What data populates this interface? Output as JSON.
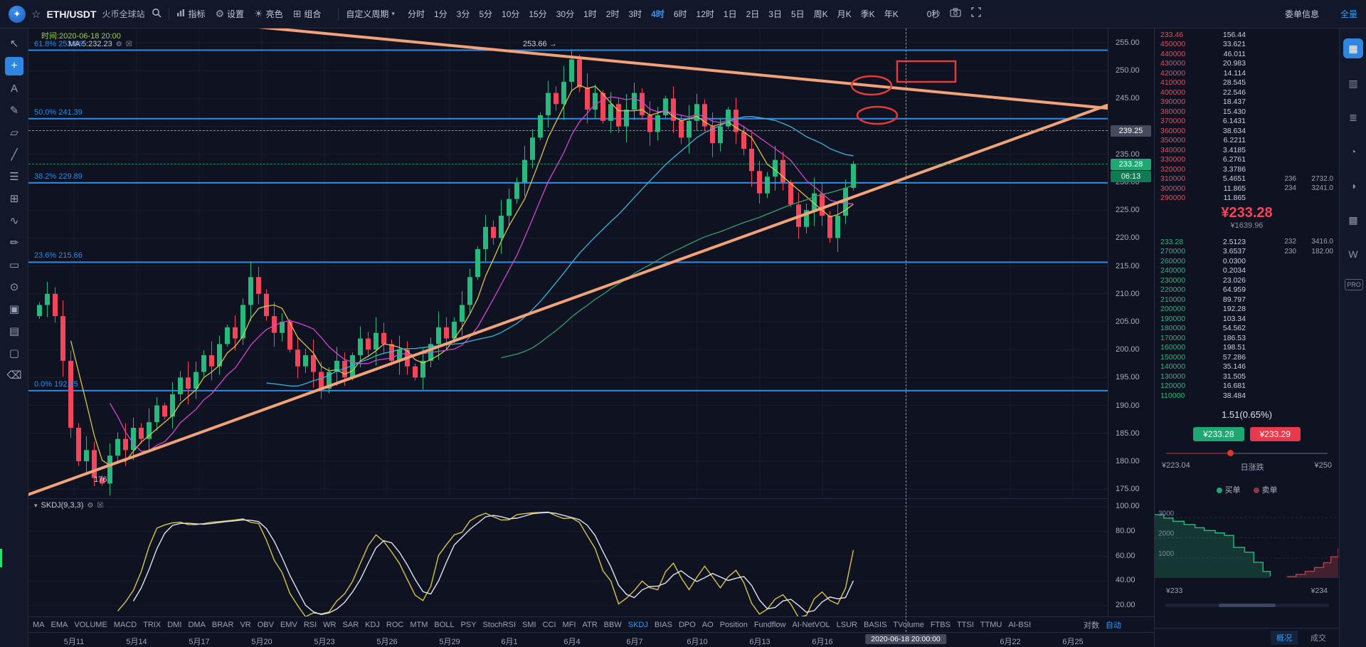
{
  "colors": {
    "accent": "#2e9bff",
    "up": "#28b97c",
    "down": "#f4455a",
    "fib": "#2e8ae6",
    "trendline": "#f2a278",
    "annotation": "#e23b3b"
  },
  "topbar": {
    "symbol": "ETH/USDT",
    "exchange": "火币全球站",
    "menu": {
      "indicators": "指标",
      "settings": "设置",
      "light": "亮色",
      "portfolio": "组合",
      "custom_period": "自定义周期"
    },
    "timeframes": [
      "分时",
      "1分",
      "3分",
      "5分",
      "10分",
      "15分",
      "30分",
      "1时",
      "2时",
      "3时",
      "4时",
      "6时",
      "12时",
      "1日",
      "2日",
      "3日",
      "5日",
      "周K",
      "月K",
      "季K",
      "年K"
    ],
    "active_timeframe": "4时",
    "countdown": "0秒",
    "order_info_label": "委单信息",
    "full_label": "全量"
  },
  "left_toolbar": {
    "tools": [
      {
        "name": "cursor-tool",
        "glyph": "↖"
      },
      {
        "name": "crosshair-tool",
        "glyph": "+",
        "active": true
      },
      {
        "name": "text-tool",
        "glyph": "A"
      },
      {
        "name": "brush-tool",
        "glyph": "✎"
      },
      {
        "name": "channel-tool",
        "glyph": "▱"
      },
      {
        "name": "trendline-tool",
        "glyph": "╱"
      },
      {
        "name": "fib-retracement-tool",
        "glyph": "☰"
      },
      {
        "name": "gann-grid-tool",
        "glyph": "⊞"
      },
      {
        "name": "wave-tool",
        "glyph": "∿"
      },
      {
        "name": "pencil-tool",
        "glyph": "✏"
      },
      {
        "name": "rectangle-tool",
        "glyph": "▭"
      },
      {
        "name": "circle-tool",
        "glyph": "⊙"
      },
      {
        "name": "anchor-tool",
        "glyph": "▣"
      },
      {
        "name": "template-tool",
        "glyph": "▤"
      },
      {
        "name": "screenshot-tool",
        "glyph": "▢"
      },
      {
        "name": "remove-drawings-tool",
        "glyph": "⌫"
      }
    ]
  },
  "right_strip": {
    "tools": [
      {
        "name": "kline-view-icon",
        "glyph": "▦",
        "active": true
      },
      {
        "name": "indicator-panel-icon",
        "glyph": "▥"
      },
      {
        "name": "orderbook-view-icon",
        "glyph": "≣"
      },
      {
        "name": "time-icon",
        "glyph": "◔"
      },
      {
        "name": "contrast-icon",
        "glyph": "◑"
      },
      {
        "name": "layout-grid-icon",
        "glyph": "▩"
      },
      {
        "name": "w-widget-icon",
        "glyph": "W"
      }
    ],
    "pro_label": "PRO"
  },
  "chart": {
    "time_label": "时间:2020-06-18 20:00",
    "ma_label": "MA 5:232.23",
    "high_marker": "253.66 →",
    "low_marker": "176",
    "fib_levels": [
      {
        "label": "61.8% 253.66",
        "price": 253.66
      },
      {
        "label": "50.0% 241.39",
        "price": 241.39
      },
      {
        "label": "38.2% 229.89",
        "price": 229.89
      },
      {
        "label": "23.6% 215.66",
        "price": 215.66
      },
      {
        "label": "0.0% 192.65",
        "price": 192.65
      }
    ],
    "y_ticks": [
      "255.00",
      "250.00",
      "245.00",
      "235.00",
      "230.00",
      "225.00",
      "220.00",
      "215.00",
      "210.00",
      "205.00",
      "200.00",
      "195.00",
      "190.00",
      "185.00",
      "180.00",
      "175.00"
    ],
    "x_ticks": [
      "5月11",
      "5月14",
      "5月17",
      "5月20",
      "5月23",
      "5月26",
      "5月29",
      "6月1",
      "6月4",
      "6月7",
      "6月10",
      "6月13",
      "6月16",
      "6月22",
      "6月25"
    ],
    "crosshair": {
      "price": "239.25",
      "time": "2020-06-18 20:00:00"
    },
    "last_price": {
      "value": "233.28",
      "countdown": "06:13"
    }
  },
  "chart_data": {
    "type": "candlestick",
    "symbol": "ETH/USDT",
    "interval": "4时",
    "price_axis_range": [
      175,
      255
    ],
    "fib_prices": [
      253.66,
      241.39,
      229.89,
      215.66,
      192.65
    ],
    "ma_periods": [
      5,
      10,
      30,
      60
    ],
    "closes": [
      208,
      210,
      206,
      198,
      186,
      180,
      182,
      177,
      176,
      181,
      184,
      182,
      186,
      184,
      187,
      190,
      188,
      192,
      195,
      193,
      196,
      199,
      197,
      201,
      204,
      202,
      208,
      213,
      210,
      206,
      203,
      205,
      200,
      197,
      199,
      196,
      193,
      196,
      198,
      195,
      199,
      202,
      200,
      203,
      201,
      198,
      200,
      197,
      195,
      198,
      201,
      204,
      202,
      205,
      208,
      213,
      218,
      222,
      220,
      224,
      227,
      230,
      234,
      238,
      242,
      246,
      244,
      248,
      252,
      247,
      243,
      246,
      241,
      244,
      240,
      243,
      246,
      242,
      239,
      242,
      245,
      241,
      238,
      241,
      244,
      240,
      237,
      240,
      243,
      239,
      236,
      232,
      228,
      231,
      234,
      230,
      226,
      222,
      225,
      228,
      224,
      220,
      224,
      229,
      233.28
    ],
    "high": 253.66,
    "low": 176,
    "skdj": {
      "name": "SKDJ(9,3,3)",
      "range": [
        20,
        100
      ],
      "ticks": [
        "100.00",
        "80.00",
        "60.00",
        "40.00",
        "20.00"
      ]
    },
    "depth": {
      "y_ticks": [
        "3000",
        "2000",
        "1000"
      ],
      "x_labels": [
        "¥233",
        "¥234"
      ],
      "max": 3400,
      "bids": [
        [
          0,
          3150
        ],
        [
          0.05,
          2980
        ],
        [
          0.1,
          2820
        ],
        [
          0.16,
          2660
        ],
        [
          0.22,
          2500
        ],
        [
          0.27,
          2360
        ],
        [
          0.33,
          2240
        ],
        [
          0.38,
          2120
        ],
        [
          0.43,
          1520
        ],
        [
          0.49,
          1280
        ],
        [
          0.54,
          780
        ],
        [
          0.59,
          320
        ],
        [
          0.63,
          90
        ]
      ],
      "asks": [
        [
          0.72,
          70
        ],
        [
          0.77,
          180
        ],
        [
          0.82,
          330
        ],
        [
          0.87,
          520
        ],
        [
          0.92,
          760
        ],
        [
          0.96,
          1050
        ],
        [
          1,
          1480
        ]
      ]
    }
  },
  "indicator_tabs": {
    "items": [
      "MA",
      "EMA",
      "VOLUME",
      "MACD",
      "TRIX",
      "DMI",
      "DMA",
      "BRAR",
      "VR",
      "OBV",
      "EMV",
      "RSI",
      "WR",
      "SAR",
      "KDJ",
      "ROC",
      "MTM",
      "BOLL",
      "PSY",
      "StochRSI",
      "SMI",
      "CCI",
      "MFI",
      "ATR",
      "BBW",
      "SKDJ",
      "BIAS",
      "DPO",
      "AO",
      "Position",
      "Fundflow",
      "AI-NetVOL",
      "LSUR",
      "BASIS",
      "TVolume",
      "FTBS",
      "TTSI",
      "TTMU",
      "AI-BSI"
    ],
    "active": "SKDJ",
    "log_label": "对数",
    "auto_label": "自动"
  },
  "orderbook": {
    "asks": [
      [
        "233.46",
        "156.44"
      ],
      [
        "450000",
        "33.621"
      ],
      [
        "440000",
        "46.011"
      ],
      [
        "430000",
        "20.983"
      ],
      [
        "420000",
        "14.114"
      ],
      [
        "410000",
        "28.545"
      ],
      [
        "400000",
        "22.546"
      ],
      [
        "390000",
        "18.437"
      ],
      [
        "380000",
        "15.430"
      ],
      [
        "370000",
        "6.1431"
      ],
      [
        "360000",
        "38.634"
      ],
      [
        "350000",
        "6.2211"
      ],
      [
        "340000",
        "3.4185"
      ],
      [
        "330000",
        "6.2761"
      ],
      [
        "320000",
        "3.3786"
      ],
      [
        "310000",
        "5.4651",
        "236",
        "2732.0"
      ],
      [
        "300000",
        "11.865",
        "234",
        "3241.0"
      ],
      [
        "290000",
        "11.865"
      ]
    ],
    "bids": [
      [
        "233.28",
        "2.5123",
        "232",
        "3416.0"
      ],
      [
        "270000",
        "3.6537",
        "230",
        "182.00"
      ],
      [
        "260000",
        "0.0300"
      ],
      [
        "240000",
        "0.2034"
      ],
      [
        "230000",
        "23.026"
      ],
      [
        "220000",
        "64.959"
      ],
      [
        "210000",
        "89.797"
      ],
      [
        "200000",
        "192.28"
      ],
      [
        "190000",
        "103.34"
      ],
      [
        "180000",
        "54.562"
      ],
      [
        "170000",
        "186.53"
      ],
      [
        "160000",
        "198.51"
      ],
      [
        "150000",
        "57.286"
      ],
      [
        "140000",
        "35.146"
      ],
      [
        "130000",
        "31.505"
      ],
      [
        "120000",
        "16.681"
      ],
      [
        "110000",
        "38.484"
      ]
    ],
    "mid_price": "¥233.28",
    "mid_cny": "¥1639.96",
    "change": "1.51(0.65%)",
    "buy_button": "¥233.28",
    "sell_button": "¥233.29",
    "range": {
      "min": "¥223.04",
      "label": "日涨跌",
      "max": "¥250"
    },
    "legend": {
      "buy": "买单",
      "sell": "卖单"
    },
    "footer": {
      "tabs": [
        "概况",
        "成交"
      ],
      "active": "概况"
    }
  }
}
